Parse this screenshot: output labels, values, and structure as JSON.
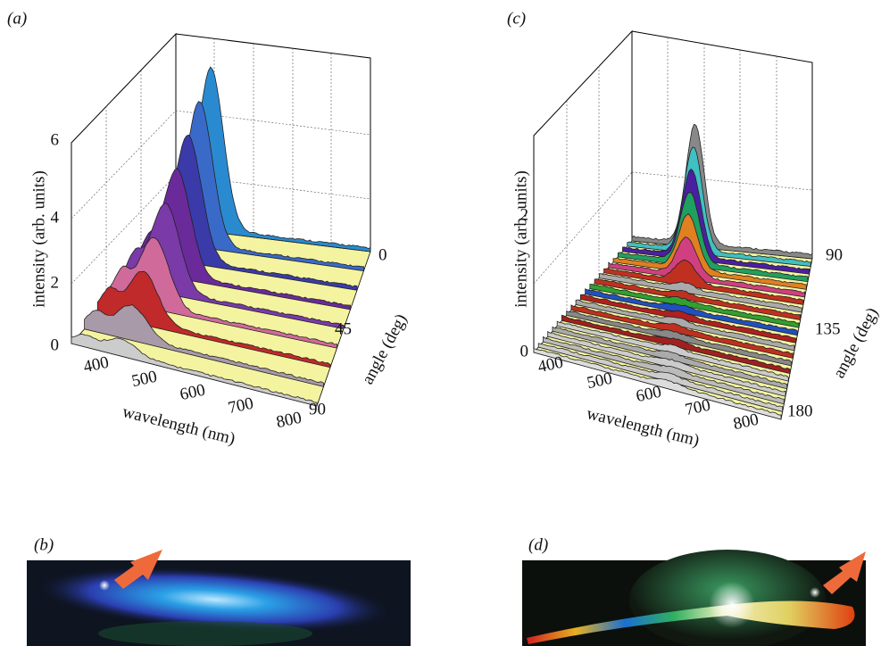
{
  "panels": [
    {
      "label": "(a)",
      "y_axis_title": "intensity (arb. units)",
      "x_axis_title": "wavelength (nm)",
      "z_axis_title": "angle (deg)",
      "y_ticks": [
        "0",
        "2",
        "4",
        "6"
      ],
      "x_ticks": [
        "400",
        "500",
        "600",
        "700",
        "800"
      ],
      "z_ticks": [
        "0",
        "45",
        "90"
      ]
    },
    {
      "label": "(b)"
    },
    {
      "label": "(c)",
      "y_axis_title": "intensity (arb. units)",
      "x_axis_title": "wavelength (nm)",
      "z_axis_title": "angle (deg)",
      "y_ticks": [
        "0",
        "2"
      ],
      "x_ticks": [
        "400",
        "500",
        "600",
        "700",
        "800"
      ],
      "z_ticks": [
        "90",
        "135",
        "180"
      ]
    },
    {
      "label": "(d)"
    }
  ]
}
